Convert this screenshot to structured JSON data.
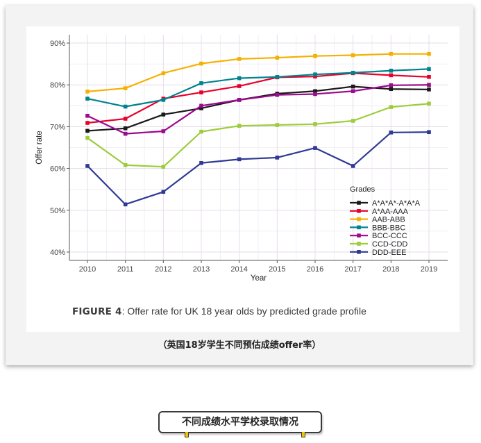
{
  "figure_caption": {
    "label": "FIGURE 4",
    "text": ": Offer rate for UK 18 year olds by predicted grade profile"
  },
  "cn_caption": "（英国18岁学生不同预估成绩offer率）",
  "section_title": "不同成绩水平学校录取情况",
  "chart_data": {
    "type": "line",
    "xlabel": "Year",
    "ylabel": "Offer rate",
    "x": [
      2010,
      2011,
      2012,
      2013,
      2014,
      2015,
      2016,
      2017,
      2018,
      2019
    ],
    "ylim": [
      38,
      92
    ],
    "yticks": [
      40,
      50,
      60,
      70,
      80,
      90
    ],
    "ytick_labels": [
      "40%",
      "50%",
      "60%",
      "70%",
      "80%",
      "90%"
    ],
    "grid": true,
    "legend": {
      "title": "Grades",
      "placement": "bottom-right"
    },
    "series": [
      {
        "name": "A*A*A*-A*A*A",
        "color": "#1a1a1a",
        "values": [
          69.0,
          69.6,
          72.9,
          74.4,
          76.4,
          77.9,
          78.5,
          79.6,
          79.0,
          78.9
        ]
      },
      {
        "name": "A*AA-AAA",
        "color": "#e8002a",
        "values": [
          70.9,
          71.9,
          76.7,
          78.2,
          79.7,
          81.8,
          82.0,
          82.8,
          82.3,
          81.9
        ]
      },
      {
        "name": "AAB-ABB",
        "color": "#f5b100",
        "values": [
          78.4,
          79.2,
          82.8,
          85.1,
          86.2,
          86.5,
          86.9,
          87.1,
          87.4,
          87.4
        ]
      },
      {
        "name": "BBB-BBC",
        "color": "#00838f",
        "values": [
          76.7,
          74.8,
          76.4,
          80.4,
          81.6,
          81.9,
          82.5,
          82.9,
          83.4,
          83.8
        ]
      },
      {
        "name": "BCC-CCC",
        "color": "#9b0a8f",
        "values": [
          72.6,
          68.3,
          68.9,
          75.0,
          76.4,
          77.6,
          77.8,
          78.5,
          79.9,
          80.0
        ]
      },
      {
        "name": "CCD-CDD",
        "color": "#9ccd3a",
        "values": [
          67.3,
          60.8,
          60.4,
          68.8,
          70.2,
          70.4,
          70.6,
          71.4,
          74.7,
          75.5
        ]
      },
      {
        "name": "DDD-EEE",
        "color": "#2e3a94",
        "values": [
          60.6,
          51.4,
          54.4,
          61.3,
          62.2,
          62.6,
          64.9,
          60.6,
          68.6,
          68.7
        ]
      }
    ]
  }
}
